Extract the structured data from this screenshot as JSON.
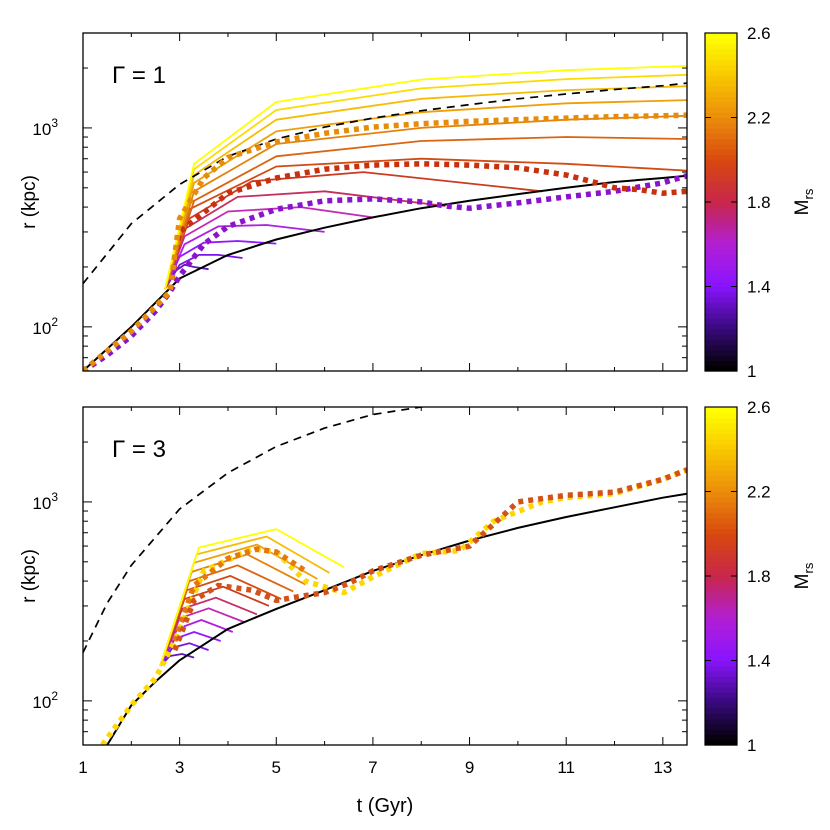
{
  "figure": {
    "xlabel": "t (Gyr)",
    "ylabel": "r (kpc)",
    "colorbar_label": "M",
    "colorbar_label_sub": "rs",
    "colorbar_ticks": [
      "1",
      "1.4",
      "1.8",
      "2.2",
      "2.6"
    ],
    "colorbar_range": [
      1,
      2.6
    ],
    "colormap": [
      "#000000",
      "#3a0a80",
      "#8a14ff",
      "#b21fd4",
      "#c8264a",
      "#d8480f",
      "#ea8a0b",
      "#f8c500",
      "#ffff00"
    ],
    "x_ticks": [
      "1",
      "3",
      "5",
      "7",
      "9",
      "11",
      "13"
    ],
    "y_tick_labels": [
      {
        "base": "10",
        "exp": "2"
      },
      {
        "base": "10",
        "exp": "3"
      }
    ]
  },
  "chart_data": [
    {
      "type": "line",
      "panel_label": "Γ = 1",
      "xlim": [
        1,
        13.5
      ],
      "ylim": [
        60,
        3000
      ],
      "yscale": "log",
      "xlabel": "t (Gyr)",
      "ylabel": "r (kpc)",
      "colorbar": {
        "label": "M_rs",
        "range": [
          1,
          2.6
        ]
      },
      "series": [
        {
          "style": "solid-black",
          "x": [
            1,
            2,
            3,
            4,
            5,
            6,
            7,
            8,
            9,
            10,
            11,
            12,
            13,
            13.5
          ],
          "y": [
            60,
            100,
            175,
            230,
            275,
            315,
            355,
            395,
            430,
            465,
            500,
            535,
            560,
            575
          ]
        },
        {
          "style": "dashed-black",
          "x": [
            1,
            2,
            3,
            4,
            5,
            6,
            7,
            8,
            9,
            10,
            11,
            12,
            13,
            13.5
          ],
          "y": [
            165,
            330,
            520,
            720,
            880,
            1010,
            1120,
            1220,
            1310,
            1400,
            1480,
            1560,
            1630,
            1680
          ]
        },
        {
          "style": "dotted",
          "color": "#8a14cc",
          "x": [
            1,
            1.5,
            2,
            2.5,
            2.8,
            3,
            3.5,
            4,
            5,
            6,
            7,
            8,
            8.5,
            9,
            10,
            11,
            12,
            13,
            13.5
          ],
          "y": [
            60,
            72,
            90,
            120,
            150,
            180,
            260,
            320,
            390,
            430,
            440,
            425,
            405,
            395,
            420,
            450,
            480,
            530,
            575
          ]
        },
        {
          "style": "dotted",
          "color": "#c8300e",
          "x": [
            1,
            2,
            2.8,
            3,
            4,
            5,
            6,
            7,
            8,
            9,
            10,
            11,
            11.5,
            12,
            12.5,
            13,
            13.5
          ],
          "y": [
            60,
            95,
            150,
            300,
            470,
            560,
            620,
            650,
            660,
            650,
            630,
            580,
            540,
            500,
            490,
            470,
            480
          ]
        },
        {
          "style": "dotted",
          "color": "#e58d0a",
          "x": [
            1,
            2,
            2.8,
            3,
            3.5,
            4,
            5,
            6,
            7,
            8,
            9,
            10,
            11,
            12,
            13,
            13.5
          ],
          "y": [
            60,
            95,
            150,
            350,
            560,
            710,
            850,
            940,
            1010,
            1050,
            1080,
            1100,
            1120,
            1140,
            1150,
            1160
          ]
        },
        {
          "style": "solid",
          "color": "#5b1ab0",
          "x": [
            2.7,
            2.9,
            3.1,
            3.3,
            3.6
          ],
          "y": [
            155,
            190,
            205,
            200,
            195
          ]
        },
        {
          "style": "solid",
          "color": "#7a16e6",
          "x": [
            2.7,
            3.0,
            3.4,
            3.8,
            4.3
          ],
          "y": [
            155,
            205,
            230,
            230,
            222
          ]
        },
        {
          "style": "solid",
          "color": "#9418ff",
          "x": [
            2.7,
            3.0,
            3.5,
            4.2,
            5.0
          ],
          "y": [
            155,
            225,
            265,
            270,
            262
          ]
        },
        {
          "style": "solid",
          "color": "#ae1fe2",
          "x": [
            2.7,
            3.1,
            3.8,
            4.8,
            6.0
          ],
          "y": [
            155,
            260,
            320,
            325,
            300
          ]
        },
        {
          "style": "solid",
          "color": "#c328b6",
          "x": [
            2.7,
            3.1,
            4.0,
            5.5,
            7.0
          ],
          "y": [
            155,
            285,
            380,
            400,
            355
          ]
        },
        {
          "style": "solid",
          "color": "#c62d62",
          "x": [
            2.7,
            3.1,
            4.2,
            6.0,
            8.5
          ],
          "y": [
            155,
            310,
            450,
            480,
            405
          ]
        },
        {
          "style": "solid",
          "color": "#cc3a22",
          "x": [
            2.7,
            3.2,
            4.5,
            6.8,
            10.5
          ],
          "y": [
            155,
            350,
            540,
            600,
            480
          ]
        },
        {
          "style": "solid",
          "color": "#d24c12",
          "x": [
            2.7,
            3.2,
            5.0,
            8.0,
            11.0,
            13.5
          ],
          "y": [
            155,
            390,
            640,
            700,
            660,
            610
          ]
        },
        {
          "style": "solid",
          "color": "#dc6410",
          "x": [
            2.7,
            3.3,
            5.0,
            8.0,
            11.0,
            13.5
          ],
          "y": [
            155,
            430,
            720,
            860,
            900,
            880
          ]
        },
        {
          "style": "solid",
          "color": "#e5820c",
          "x": [
            2.7,
            3.3,
            5.0,
            8.0,
            11.0,
            13.5
          ],
          "y": [
            155,
            480,
            830,
            1000,
            1100,
            1150
          ]
        },
        {
          "style": "solid",
          "color": "#eea008",
          "x": [
            2.7,
            3.3,
            5.0,
            8.0,
            11.0,
            13.5
          ],
          "y": [
            155,
            530,
            960,
            1200,
            1330,
            1380
          ]
        },
        {
          "style": "solid",
          "color": "#f6bc04",
          "x": [
            2.7,
            3.3,
            5.0,
            8.0,
            11.0,
            13.5
          ],
          "y": [
            155,
            580,
            1100,
            1400,
            1550,
            1620
          ]
        },
        {
          "style": "solid",
          "color": "#fcdb02",
          "x": [
            2.7,
            3.3,
            5.0,
            8.0,
            11.0,
            13.5
          ],
          "y": [
            155,
            620,
            1230,
            1580,
            1760,
            1850
          ]
        },
        {
          "style": "solid",
          "color": "#ffff00",
          "x": [
            2.7,
            3.3,
            5.0,
            8.0,
            11.0,
            13.5
          ],
          "y": [
            155,
            660,
            1350,
            1750,
            1950,
            2050
          ]
        }
      ]
    },
    {
      "type": "line",
      "panel_label": "Γ = 3",
      "xlim": [
        1,
        13.5
      ],
      "ylim": [
        60,
        3000
      ],
      "yscale": "log",
      "xlabel": "t (Gyr)",
      "ylabel": "r (kpc)",
      "colorbar": {
        "label": "M_rs",
        "range": [
          1,
          2.6
        ]
      },
      "series": [
        {
          "style": "solid-black",
          "x": [
            1.5,
            2,
            2.5,
            3,
            4,
            5,
            6,
            7,
            8,
            9,
            10,
            11,
            12,
            13,
            13.5
          ],
          "y": [
            60,
            95,
            125,
            160,
            230,
            290,
            360,
            450,
            540,
            640,
            740,
            840,
            940,
            1050,
            1100
          ]
        },
        {
          "style": "dashed-black",
          "x": [
            1,
            1.5,
            2,
            3,
            4,
            5,
            6,
            7,
            8,
            8.3
          ],
          "y": [
            175,
            310,
            480,
            920,
            1400,
            1900,
            2350,
            2750,
            3000,
            3050
          ]
        },
        {
          "style": "dotted",
          "color": "#ffd700",
          "x": [
            1.4,
            2,
            2.5,
            2.9,
            3.5,
            4.5,
            5.0,
            5.6,
            6.4,
            7,
            8,
            8.8,
            9.5,
            10.5,
            11,
            12,
            13,
            13.5
          ],
          "y": [
            60,
            95,
            130,
            200,
            450,
            580,
            560,
            400,
            350,
            420,
            550,
            570,
            800,
            1000,
            1050,
            1100,
            1300,
            1450
          ]
        },
        {
          "style": "dotted",
          "color": "#e5770c",
          "x": [
            2.9,
            3.3,
            4,
            4.6,
            5.0,
            5.6
          ],
          "y": [
            200,
            380,
            520,
            580,
            560,
            450
          ]
        },
        {
          "style": "dotted",
          "color": "#d2521a",
          "x": [
            2.9,
            3.3,
            3.8,
            4.5,
            5.0,
            5.5,
            6.0,
            6.5,
            7,
            8,
            9,
            10,
            11,
            12,
            13,
            13.5
          ],
          "y": [
            180,
            320,
            380,
            360,
            320,
            335,
            350,
            390,
            450,
            540,
            600,
            1000,
            1080,
            1120,
            1300,
            1450
          ]
        },
        {
          "style": "solid",
          "color": "#5b1ab0",
          "x": [
            2.6,
            2.8,
            3.05,
            3.3
          ],
          "y": [
            150,
            168,
            172,
            165
          ]
        },
        {
          "style": "solid",
          "color": "#7a16e6",
          "x": [
            2.6,
            2.85,
            3.2,
            3.6
          ],
          "y": [
            150,
            185,
            195,
            180
          ]
        },
        {
          "style": "solid",
          "color": "#9418ff",
          "x": [
            2.6,
            2.9,
            3.3,
            3.85
          ],
          "y": [
            150,
            205,
            222,
            200
          ]
        },
        {
          "style": "solid",
          "color": "#ae1fe2",
          "x": [
            2.6,
            2.95,
            3.45,
            4.1
          ],
          "y": [
            150,
            230,
            255,
            222
          ]
        },
        {
          "style": "solid",
          "color": "#c328b6",
          "x": [
            2.6,
            3.0,
            3.6,
            4.35
          ],
          "y": [
            150,
            260,
            292,
            248
          ]
        },
        {
          "style": "solid",
          "color": "#c62d62",
          "x": [
            2.6,
            3.05,
            3.75,
            4.6
          ],
          "y": [
            150,
            290,
            330,
            272
          ]
        },
        {
          "style": "solid",
          "color": "#cc3a22",
          "x": [
            2.6,
            3.1,
            3.9,
            4.85
          ],
          "y": [
            150,
            325,
            375,
            300
          ]
        },
        {
          "style": "solid",
          "color": "#d24c12",
          "x": [
            2.6,
            3.15,
            4.05,
            5.1
          ],
          "y": [
            150,
            360,
            425,
            325
          ]
        },
        {
          "style": "solid",
          "color": "#dc6410",
          "x": [
            2.6,
            3.2,
            4.2,
            5.35
          ],
          "y": [
            150,
            400,
            480,
            355
          ]
        },
        {
          "style": "solid",
          "color": "#e5820c",
          "x": [
            2.6,
            3.25,
            4.4,
            5.6
          ],
          "y": [
            150,
            445,
            545,
            385
          ]
        },
        {
          "style": "solid",
          "color": "#eea008",
          "x": [
            2.6,
            3.3,
            4.6,
            5.85
          ],
          "y": [
            150,
            495,
            610,
            410
          ]
        },
        {
          "style": "solid",
          "color": "#f6bc04",
          "x": [
            2.6,
            3.35,
            4.8,
            6.1
          ],
          "y": [
            150,
            545,
            670,
            440
          ]
        },
        {
          "style": "solid",
          "color": "#ffff00",
          "x": [
            2.6,
            3.4,
            5.0,
            6.4
          ],
          "y": [
            150,
            590,
            730,
            470
          ]
        }
      ]
    }
  ]
}
